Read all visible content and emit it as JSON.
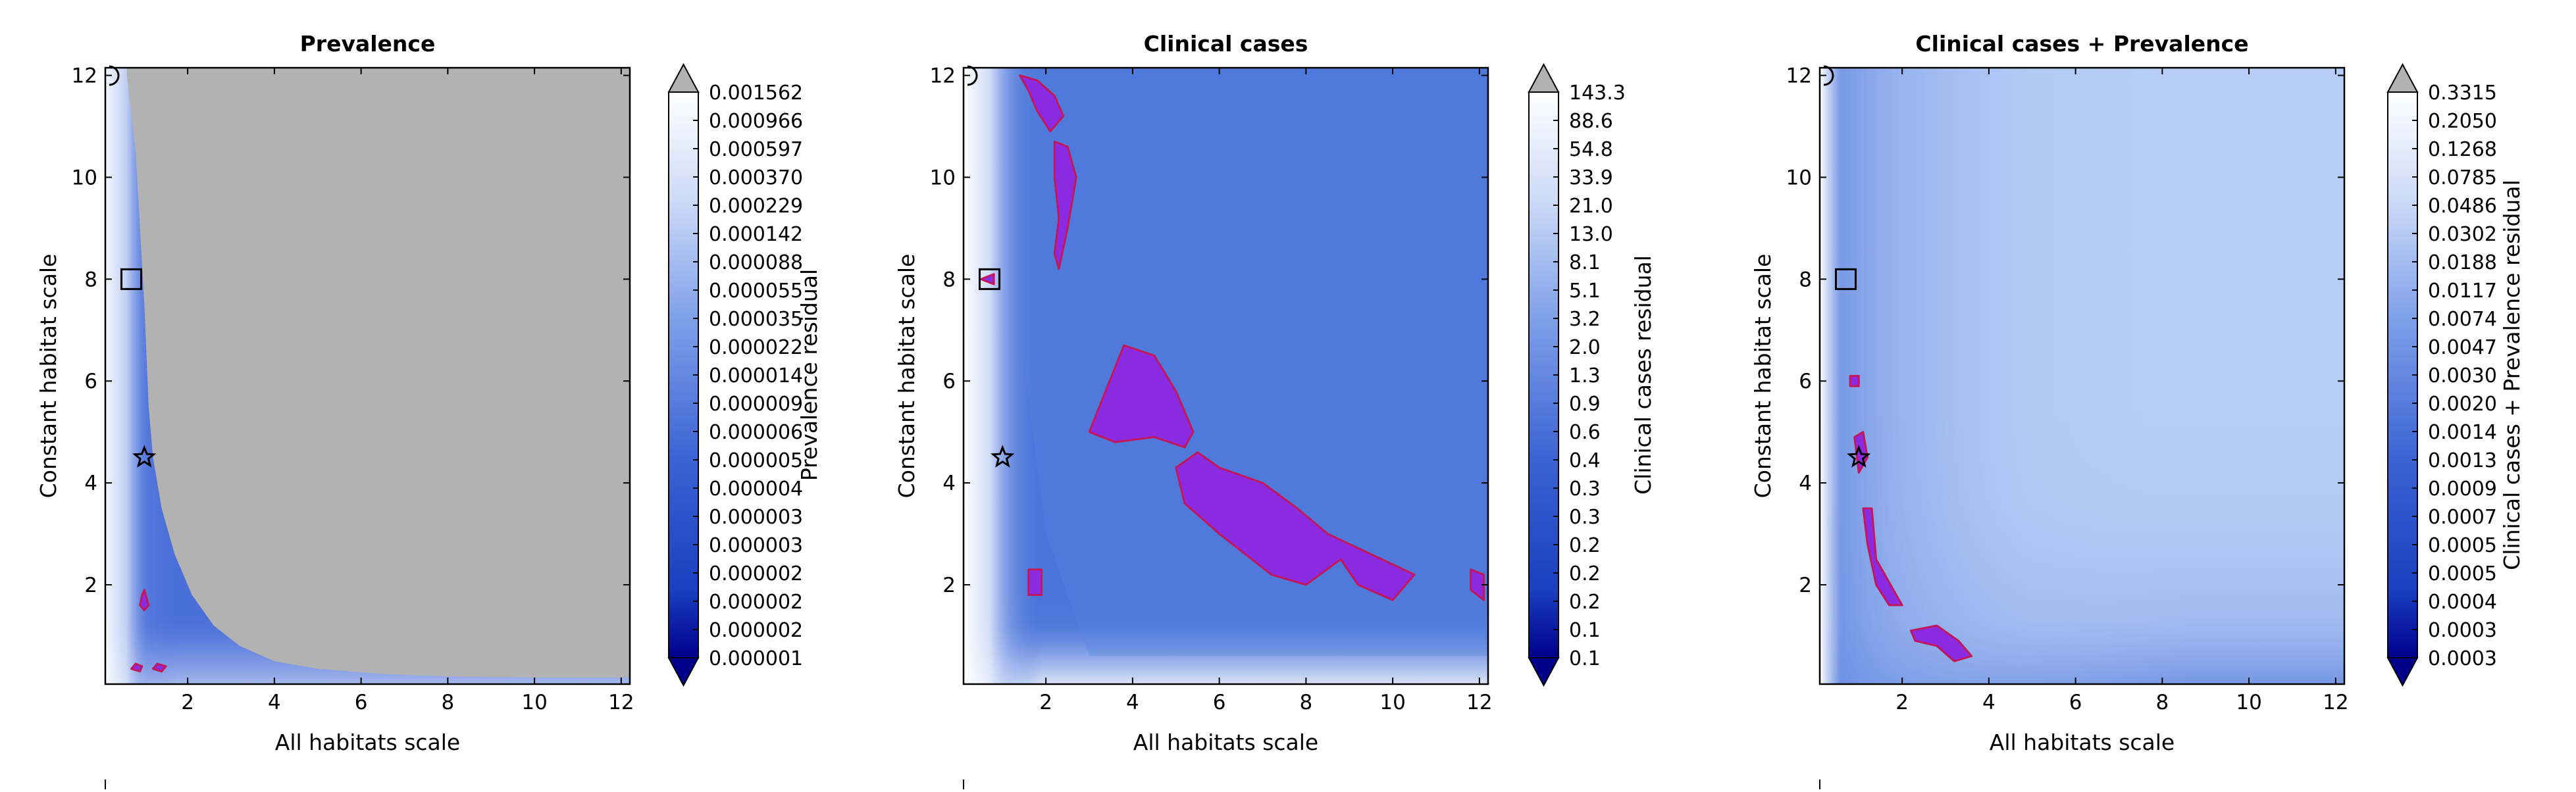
{
  "chart_data": [
    {
      "type": "heatmap",
      "title": "Prevalence",
      "xlabel": "All habitats scale",
      "ylabel": "Constant habitat scale",
      "xlim": [
        0.1,
        12.2
      ],
      "ylim": [
        0.05,
        12.15
      ],
      "x_ticks": [
        "2",
        "4",
        "6",
        "8",
        "10",
        "12"
      ],
      "y_ticks": [
        "2",
        "4",
        "6",
        "8",
        "10",
        "12"
      ],
      "colorbar_label": "Prevalence residual",
      "colorbar_ticks": [
        "0.001562",
        "0.000966",
        "0.000597",
        "0.000370",
        "0.000229",
        "0.000142",
        "0.000088",
        "0.000055",
        "0.000035",
        "0.000022",
        "0.000014",
        "0.000009",
        "0.000006",
        "0.000005",
        "0.000004",
        "0.000003",
        "0.000003",
        "0.000002",
        "0.000002",
        "0.000002",
        "0.000001"
      ],
      "grey_region_above_percentile": true,
      "frontier": [
        [
          0.6,
          12.0
        ],
        [
          0.8,
          10.5
        ],
        [
          0.9,
          9.0
        ],
        [
          1.0,
          7.5
        ],
        [
          1.05,
          6.5
        ],
        [
          1.1,
          5.5
        ],
        [
          1.2,
          4.5
        ],
        [
          1.4,
          3.5
        ],
        [
          1.7,
          2.6
        ],
        [
          2.1,
          1.8
        ],
        [
          2.6,
          1.2
        ],
        [
          3.2,
          0.8
        ],
        [
          4.0,
          0.5
        ],
        [
          5.0,
          0.35
        ],
        [
          6.5,
          0.25
        ],
        [
          8.0,
          0.2
        ],
        [
          10.0,
          0.18
        ],
        [
          12.0,
          0.18
        ]
      ],
      "markers": [
        {
          "shape": "square",
          "x": 0.7,
          "y": 8.0
        },
        {
          "shape": "star",
          "x": 1.0,
          "y": 4.5
        },
        {
          "shape": "half-circle",
          "x": 0.15,
          "y": 12.0
        }
      ],
      "highlight_regions": [
        [
          [
            0.9,
            1.6
          ],
          [
            1.0,
            1.5
          ],
          [
            1.1,
            1.6
          ],
          [
            1.0,
            1.9
          ],
          [
            0.95,
            1.8
          ]
        ],
        [
          [
            1.2,
            0.35
          ],
          [
            1.4,
            0.3
          ],
          [
            1.5,
            0.4
          ],
          [
            1.3,
            0.45
          ]
        ],
        [
          [
            0.7,
            0.35
          ],
          [
            0.9,
            0.3
          ],
          [
            0.95,
            0.4
          ],
          [
            0.8,
            0.45
          ]
        ]
      ]
    },
    {
      "type": "heatmap",
      "title": "Clinical cases",
      "xlabel": "All habitats scale",
      "ylabel": "Constant habitat scale",
      "xlim": [
        0.1,
        12.2
      ],
      "ylim": [
        0.05,
        12.15
      ],
      "x_ticks": [
        "2",
        "4",
        "6",
        "8",
        "10",
        "12"
      ],
      "y_ticks": [
        "2",
        "4",
        "6",
        "8",
        "10",
        "12"
      ],
      "colorbar_label": "Clinical cases residual",
      "colorbar_ticks": [
        "143.3",
        "88.6",
        "54.8",
        "33.9",
        "21.0",
        "13.0",
        "8.1",
        "5.1",
        "3.2",
        "2.0",
        "1.3",
        "0.9",
        "0.6",
        "0.4",
        "0.3",
        "0.3",
        "0.2",
        "0.2",
        "0.2",
        "0.1",
        "0.1"
      ],
      "markers": [
        {
          "shape": "square",
          "x": 0.7,
          "y": 8.0
        },
        {
          "shape": "star",
          "x": 1.0,
          "y": 4.5
        },
        {
          "shape": "half-circle",
          "x": 0.15,
          "y": 12.0
        }
      ],
      "highlight_regions": [
        [
          [
            1.4,
            12.0
          ],
          [
            1.8,
            11.9
          ],
          [
            2.2,
            11.6
          ],
          [
            2.4,
            11.2
          ],
          [
            2.1,
            10.9
          ],
          [
            1.8,
            11.3
          ],
          [
            1.6,
            11.7
          ]
        ],
        [
          [
            2.2,
            10.7
          ],
          [
            2.5,
            10.6
          ],
          [
            2.7,
            10.0
          ],
          [
            2.5,
            9.0
          ],
          [
            2.3,
            8.2
          ],
          [
            2.2,
            8.5
          ],
          [
            2.3,
            9.2
          ],
          [
            2.2,
            10.0
          ]
        ],
        [
          [
            3.0,
            5.0
          ],
          [
            3.8,
            6.7
          ],
          [
            4.5,
            6.5
          ],
          [
            5.0,
            5.8
          ],
          [
            5.4,
            5.0
          ],
          [
            5.2,
            4.7
          ],
          [
            4.5,
            4.9
          ],
          [
            3.6,
            4.8
          ]
        ],
        [
          [
            5.0,
            4.3
          ],
          [
            5.5,
            4.6
          ],
          [
            6.0,
            4.3
          ],
          [
            7.0,
            4.0
          ],
          [
            7.8,
            3.5
          ],
          [
            8.5,
            3.0
          ],
          [
            9.5,
            2.6
          ],
          [
            10.5,
            2.2
          ],
          [
            10.0,
            1.7
          ],
          [
            9.2,
            2.0
          ],
          [
            8.8,
            2.5
          ],
          [
            8.0,
            2.0
          ],
          [
            7.2,
            2.2
          ],
          [
            6.0,
            3.0
          ],
          [
            5.2,
            3.6
          ]
        ],
        [
          [
            11.8,
            2.3
          ],
          [
            12.1,
            2.2
          ],
          [
            12.1,
            1.7
          ],
          [
            11.8,
            1.9
          ]
        ],
        [
          [
            1.6,
            2.3
          ],
          [
            1.9,
            2.3
          ],
          [
            1.9,
            1.8
          ],
          [
            1.6,
            1.8
          ]
        ],
        [
          [
            0.5,
            8.0
          ],
          [
            0.8,
            8.1
          ],
          [
            0.8,
            7.9
          ]
        ]
      ]
    },
    {
      "type": "heatmap",
      "title": "Clinical cases + Prevalence",
      "xlabel": "All habitats scale",
      "ylabel": "Constant habitat scale",
      "xlim": [
        0.1,
        12.2
      ],
      "ylim": [
        0.05,
        12.15
      ],
      "x_ticks": [
        "2",
        "4",
        "6",
        "8",
        "10",
        "12"
      ],
      "y_ticks": [
        "2",
        "4",
        "6",
        "8",
        "10",
        "12"
      ],
      "colorbar_label": "Clinical cases + Prevalence residual",
      "colorbar_ticks": [
        "0.3315",
        "0.2050",
        "0.1268",
        "0.0785",
        "0.0486",
        "0.0302",
        "0.0188",
        "0.0117",
        "0.0074",
        "0.0047",
        "0.0030",
        "0.0020",
        "0.0014",
        "0.0013",
        "0.0009",
        "0.0007",
        "0.0005",
        "0.0005",
        "0.0004",
        "0.0003",
        "0.0003"
      ],
      "markers": [
        {
          "shape": "square",
          "x": 0.7,
          "y": 8.0
        },
        {
          "shape": "star",
          "x": 1.0,
          "y": 4.5
        },
        {
          "shape": "half-circle",
          "x": 0.15,
          "y": 12.0
        }
      ],
      "highlight_regions": [
        [
          [
            0.9,
            4.9
          ],
          [
            1.1,
            5.0
          ],
          [
            1.2,
            4.5
          ],
          [
            1.0,
            4.2
          ]
        ],
        [
          [
            1.1,
            3.5
          ],
          [
            1.3,
            3.5
          ],
          [
            1.4,
            2.5
          ],
          [
            1.8,
            1.9
          ],
          [
            2.0,
            1.6
          ],
          [
            1.7,
            1.6
          ],
          [
            1.4,
            2.0
          ],
          [
            1.2,
            2.8
          ]
        ],
        [
          [
            2.2,
            1.1
          ],
          [
            2.8,
            1.2
          ],
          [
            3.3,
            0.9
          ],
          [
            3.6,
            0.6
          ],
          [
            3.2,
            0.5
          ],
          [
            2.8,
            0.8
          ],
          [
            2.3,
            0.9
          ]
        ],
        [
          [
            0.8,
            6.1
          ],
          [
            1.0,
            6.1
          ],
          [
            1.0,
            5.9
          ],
          [
            0.8,
            5.9
          ]
        ]
      ]
    }
  ]
}
